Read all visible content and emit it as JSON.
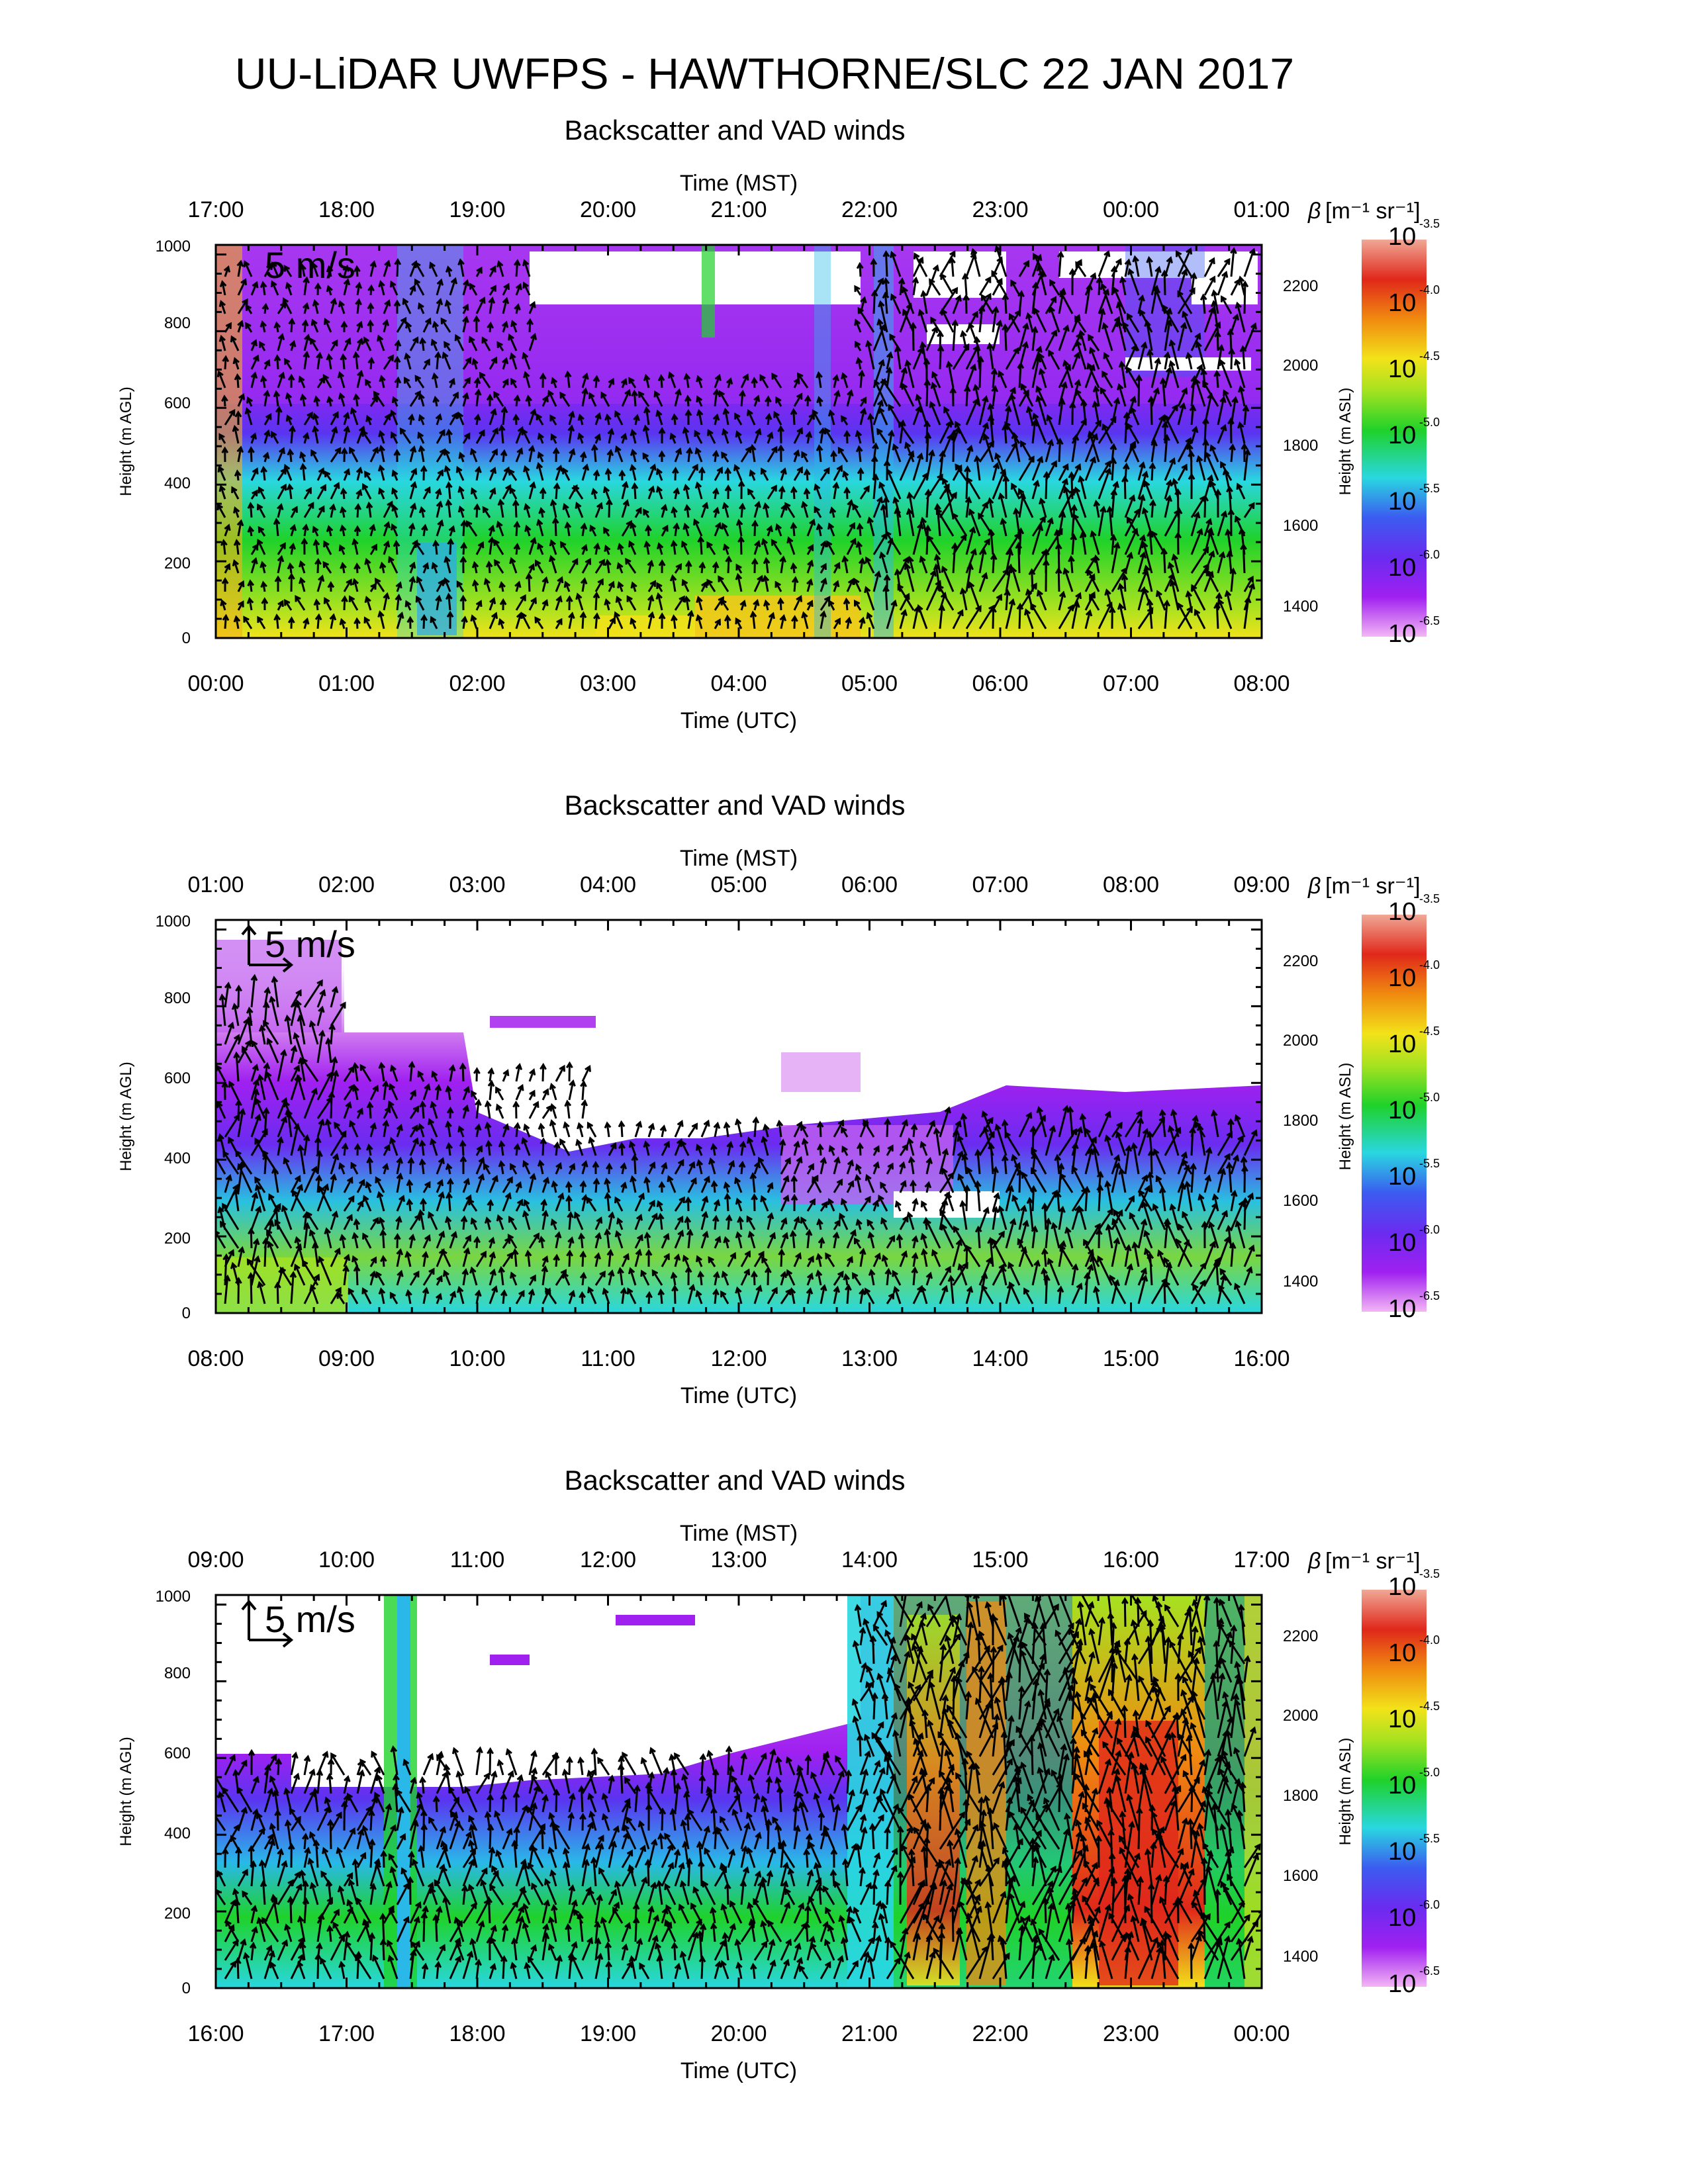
{
  "figure": {
    "title": "UU-LiDAR UWFPS - HAWTHORNE/SLC 22 JAN 2017",
    "panel_title": "Backscatter and VAD winds",
    "top_axis_label": "Time (MST)",
    "bottom_axis_label": "Time (UTC)",
    "left_axis_label": "Height (m AGL)",
    "right_axis_label": "Height (m ASL)",
    "colorbar_label_symbol": "β",
    "colorbar_label_units": "[m⁻¹ sr⁻¹]",
    "wind_scale_label": "5 m/s",
    "colors": {
      "low": "#f3b6f4",
      "violet": "#a020f0",
      "blue": "#3b5cf0",
      "cyan": "#29d7e0",
      "green": "#1fd22a",
      "yellowgreen": "#a6e220",
      "yellow": "#f2e21a",
      "orange": "#f08a10",
      "red": "#e0281a",
      "high": "#f0a896",
      "arrows": "#000000"
    }
  },
  "chart_data": [
    {
      "type": "heatmap",
      "title": "Backscatter and VAD winds",
      "x_top_ticks": [
        "17:00",
        "18:00",
        "19:00",
        "20:00",
        "21:00",
        "22:00",
        "23:00",
        "00:00",
        "01:00"
      ],
      "x_bottom_ticks": [
        "00:00",
        "01:00",
        "02:00",
        "03:00",
        "04:00",
        "05:00",
        "06:00",
        "07:00",
        "08:00"
      ],
      "y_left_ticks": [
        "0",
        "200",
        "400",
        "600",
        "800",
        "1000"
      ],
      "y_right_ticks": [
        "1400",
        "1600",
        "1800",
        "2000",
        "2200"
      ],
      "ylim": [
        0,
        1000
      ],
      "colorbar": {
        "base": "10",
        "exponents": [
          "-6.5",
          "-6.0",
          "-5.5",
          "-5.0",
          "-4.5",
          "-4.0",
          "-3.5"
        ]
      },
      "wind_scale": "5 m/s"
    },
    {
      "type": "heatmap",
      "title": "Backscatter and VAD winds",
      "x_top_ticks": [
        "01:00",
        "02:00",
        "03:00",
        "04:00",
        "05:00",
        "06:00",
        "07:00",
        "08:00",
        "09:00"
      ],
      "x_bottom_ticks": [
        "08:00",
        "09:00",
        "10:00",
        "11:00",
        "12:00",
        "13:00",
        "14:00",
        "15:00",
        "16:00"
      ],
      "y_left_ticks": [
        "0",
        "200",
        "400",
        "600",
        "800",
        "1000"
      ],
      "y_right_ticks": [
        "1400",
        "1600",
        "1800",
        "2000",
        "2200"
      ],
      "ylim": [
        0,
        1000
      ],
      "colorbar": {
        "base": "10",
        "exponents": [
          "-6.5",
          "-6.0",
          "-5.5",
          "-5.0",
          "-4.5",
          "-4.0",
          "-3.5"
        ]
      },
      "wind_scale": "5 m/s"
    },
    {
      "type": "heatmap",
      "title": "Backscatter and VAD winds",
      "x_top_ticks": [
        "09:00",
        "10:00",
        "11:00",
        "12:00",
        "13:00",
        "14:00",
        "15:00",
        "16:00",
        "17:00"
      ],
      "x_bottom_ticks": [
        "16:00",
        "17:00",
        "18:00",
        "19:00",
        "20:00",
        "21:00",
        "22:00",
        "23:00",
        "00:00"
      ],
      "y_left_ticks": [
        "0",
        "200",
        "400",
        "600",
        "800",
        "1000"
      ],
      "y_right_ticks": [
        "1400",
        "1600",
        "1800",
        "2000",
        "2200"
      ],
      "ylim": [
        0,
        1000
      ],
      "colorbar": {
        "base": "10",
        "exponents": [
          "-6.5",
          "-6.0",
          "-5.5",
          "-5.0",
          "-4.5",
          "-4.0",
          "-3.5"
        ]
      },
      "wind_scale": "5 m/s"
    }
  ]
}
